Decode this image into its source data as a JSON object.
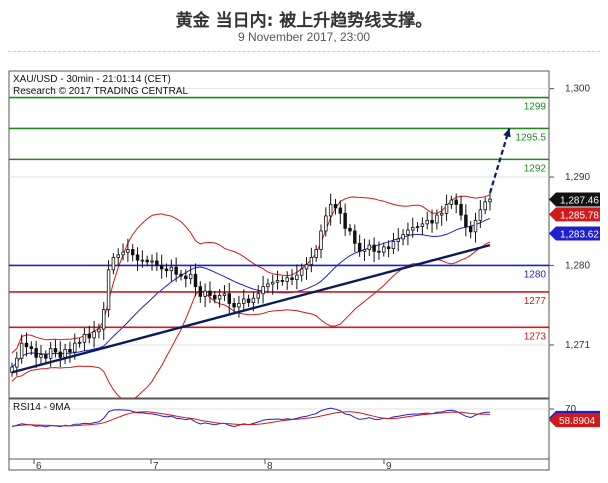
{
  "header": {
    "title": "黄金 当日内: 被上升趋势线支撑。",
    "datetime": "9 November 2017, 23:00"
  },
  "chart_data": [
    {
      "type": "candlestick",
      "info_line": "XAU/USD - 30min - 21:01:14 (CET)",
      "research_line": "Research © 2017 TRADING CENTRAL",
      "x_ticks": [
        "6",
        "7",
        "8",
        "9"
      ],
      "y_ticks": [
        1271,
        1280,
        1290,
        1300
      ],
      "ylim": [
        1265,
        1302
      ],
      "levels": [
        {
          "label": "1299",
          "value": 1299,
          "color": "#1e8a1e"
        },
        {
          "label": "1295.5",
          "value": 1295.5,
          "color": "#1e8a1e"
        },
        {
          "label": "1292",
          "value": 1292,
          "color": "#1e8a1e"
        },
        {
          "label": "1280",
          "value": 1280,
          "color": "#1f1fcc"
        },
        {
          "label": "1277",
          "value": 1277,
          "color": "#d11b1b"
        },
        {
          "label": "1273",
          "value": 1273,
          "color": "#d11b1b"
        }
      ],
      "price_tags": [
        {
          "label": "1,287.46",
          "value": 1287.46,
          "bg": "#111111",
          "fg": "#ffffff"
        },
        {
          "label": "1,285.78",
          "value": 1285.78,
          "bg": "#d11b1b",
          "fg": "#ffffff"
        },
        {
          "label": "1,283.62",
          "value": 1283.62,
          "bg": "#1f1fcc",
          "fg": "#ffffff"
        }
      ],
      "series_close": [
        1268.5,
        1269.5,
        1271.2,
        1270.8,
        1270.6,
        1269.6,
        1269.9,
        1269.5,
        1270.6,
        1270.2,
        1269.6,
        1270.5,
        1270.2,
        1271.2,
        1271.3,
        1272.2,
        1271.8,
        1272.5,
        1272.8,
        1275,
        1279.5,
        1280.9,
        1281.2,
        1281.5,
        1281.8,
        1281.2,
        1280.6,
        1280.6,
        1280.4,
        1280.5,
        1280,
        1279.6,
        1279.4,
        1279.8,
        1279,
        1278.8,
        1278.5,
        1279,
        1277.6,
        1276.5,
        1277.1,
        1276.6,
        1276.2,
        1276.6,
        1276.8,
        1275.7,
        1275.3,
        1275.7,
        1276.2,
        1275.8,
        1276.3,
        1276.8,
        1277.6,
        1277.9,
        1278.1,
        1278.3,
        1278.2,
        1278.6,
        1278.4,
        1278.9,
        1279.6,
        1280.1,
        1280.9,
        1281.8,
        1283.9,
        1285.6,
        1286.9,
        1286.5,
        1285.9,
        1284.2,
        1283.9,
        1282.5,
        1281.6,
        1281.8,
        1282.3,
        1281.6,
        1281.5,
        1282.1,
        1281.9,
        1282.7,
        1283,
        1283.5,
        1284,
        1284.3,
        1284.4,
        1284.7,
        1285.1,
        1284.8,
        1285.7,
        1285.9,
        1286.9,
        1287.4,
        1286.9,
        1285.7,
        1284.4,
        1283.8,
        1285.1,
        1286.3,
        1287.2,
        1287.5
      ],
      "trendline": {
        "from": [
          0,
          1267.9
        ],
        "to": [
          99,
          1282.3
        ],
        "color": "#0a1a5c"
      },
      "forecast_arrow": {
        "from": [
          99,
          1288.2
        ],
        "to": [
          103,
          1295.5
        ],
        "color": "#0a1a5c"
      },
      "rsi": {
        "label": "RSI14 - 9MA",
        "tick": "70",
        "ylim": [
          20,
          80
        ],
        "values": [
          52.4,
          53.8,
          55.2,
          54.5,
          54.0,
          52.7,
          53.2,
          52.1,
          53.4,
          53.1,
          52.4,
          53.7,
          53.1,
          54.8,
          54.9,
          55.8,
          55.2,
          56.4,
          57.1,
          60.7,
          67.2,
          69.0,
          69.2,
          69.0,
          68.8,
          67.6,
          66.1,
          66.2,
          65.4,
          65.1,
          64.3,
          63.0,
          62.1,
          62.8,
          60.8,
          60.3,
          59.2,
          60.2,
          57.1,
          55.0,
          56.1,
          55.1,
          54.2,
          55.3,
          55.8,
          53.6,
          52.4,
          53.7,
          55.2,
          54.3,
          55.6,
          57.0,
          58.8,
          59.6,
          59.8,
          60.0,
          59.5,
          60.3,
          59.6,
          60.6,
          62.0,
          62.8,
          64.2,
          65.4,
          68.3,
          69.8,
          70.9,
          69.8,
          68.3,
          65.0,
          64.3,
          61.4,
          59.6,
          60.2,
          61.3,
          59.8,
          59.5,
          60.9,
          60.4,
          62.1,
          62.7,
          63.6,
          64.5,
          64.9,
          64.9,
          65.4,
          65.9,
          65.2,
          66.8,
          67.0,
          68.4,
          68.8,
          67.8,
          65.3,
          62.7,
          61.5,
          63.8,
          65.7,
          66.6,
          66.9
        ],
        "ma_values": [
          53.0,
          53.3,
          53.8,
          54.1,
          54.2,
          54.0,
          53.9,
          53.7,
          53.6,
          53.4,
          53.1,
          53.1,
          53.1,
          53.3,
          53.6,
          54.0,
          54.3,
          54.7,
          55.3,
          56.2,
          57.9,
          59.8,
          61.7,
          63.5,
          65.1,
          66.3,
          66.9,
          67.1,
          67.2,
          66.8,
          66.1,
          65.4,
          64.6,
          63.9,
          62.9,
          62.0,
          61.2,
          60.8,
          59.9,
          58.8,
          57.9,
          57.2,
          56.4,
          55.8,
          55.6,
          55.2,
          54.9,
          54.5,
          54.6,
          54.5,
          54.5,
          54.8,
          55.3,
          56.0,
          56.8,
          57.6,
          58.3,
          58.9,
          59.4,
          59.8,
          60.2,
          60.7,
          61.3,
          62.0,
          63.0,
          64.0,
          65.1,
          66.1,
          66.8,
          67.3,
          67.3,
          66.9,
          66.1,
          65.0,
          63.9,
          62.7,
          61.5,
          60.8,
          60.2,
          60.5,
          60.9,
          61.6,
          62.3,
          63.0,
          63.6,
          64.2,
          64.8,
          65.2,
          65.6,
          66.0,
          66.5,
          66.8,
          66.9,
          66.7,
          66.2,
          65.5,
          65.1,
          64.9,
          64.8,
          64.6
        ],
        "tags": [
          {
            "label": "61.1546",
            "value": 61.15,
            "bg": "#1f1fcc",
            "fg": "#ffffff"
          },
          {
            "label": "58.8904",
            "value": 58.89,
            "bg": "#d11b1b",
            "fg": "#ffffff"
          }
        ]
      }
    }
  ]
}
